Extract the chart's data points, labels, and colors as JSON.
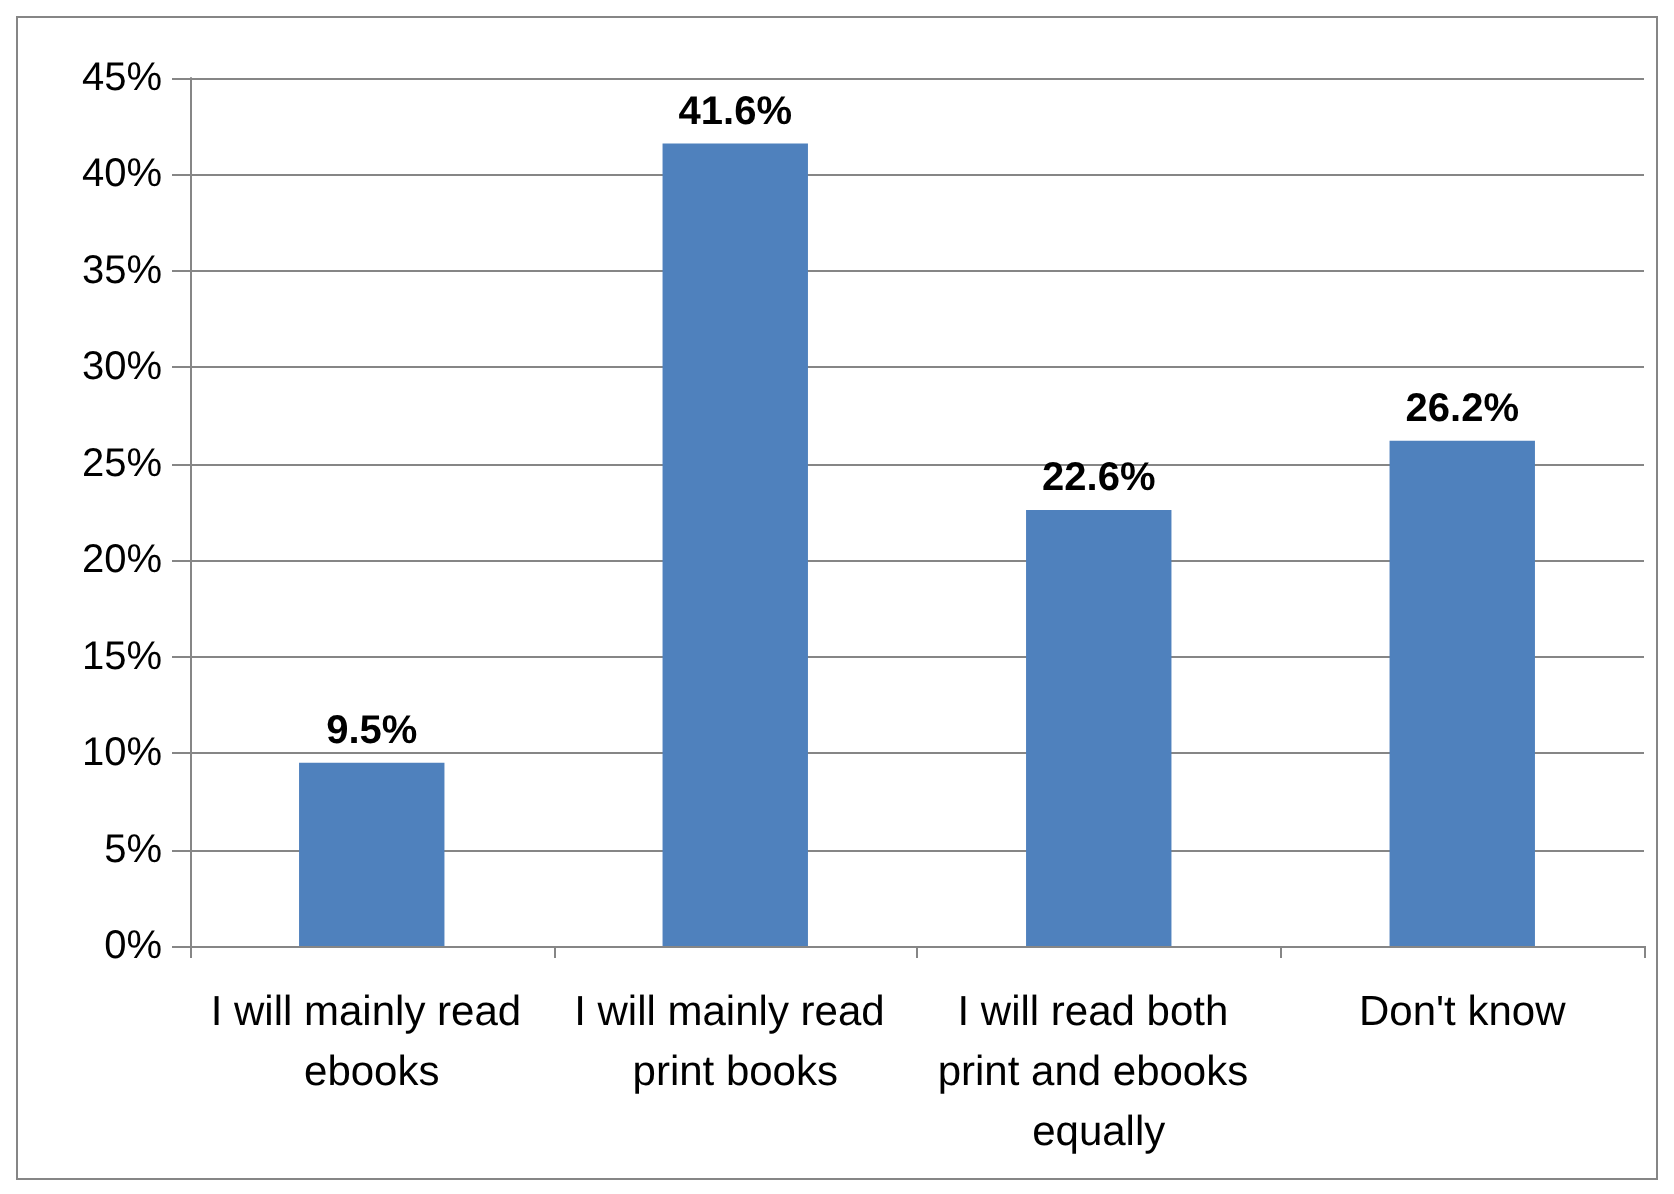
{
  "chart_data": {
    "type": "bar",
    "categories": [
      "I will mainly read ebooks",
      "I will mainly read print books",
      "I will read both print and ebooks equally",
      "Don't know"
    ],
    "values": [
      9.5,
      41.6,
      22.6,
      26.2
    ],
    "value_labels": [
      "9.5%",
      "41.6%",
      "22.6%",
      "26.2%"
    ],
    "color": "#4f81bd",
    "ylim": [
      0,
      45
    ],
    "yticks": [
      {
        "value": 0,
        "label": "0%"
      },
      {
        "value": 5,
        "label": "5%"
      },
      {
        "value": 10,
        "label": "10%"
      },
      {
        "value": 15,
        "label": "15%"
      },
      {
        "value": 20,
        "label": "20%"
      },
      {
        "value": 25,
        "label": "25%"
      },
      {
        "value": 30,
        "label": "30%"
      },
      {
        "value": 35,
        "label": "35%"
      },
      {
        "value": 40,
        "label": "40%"
      },
      {
        "value": 45,
        "label": "45%"
      }
    ],
    "grid": "y"
  }
}
